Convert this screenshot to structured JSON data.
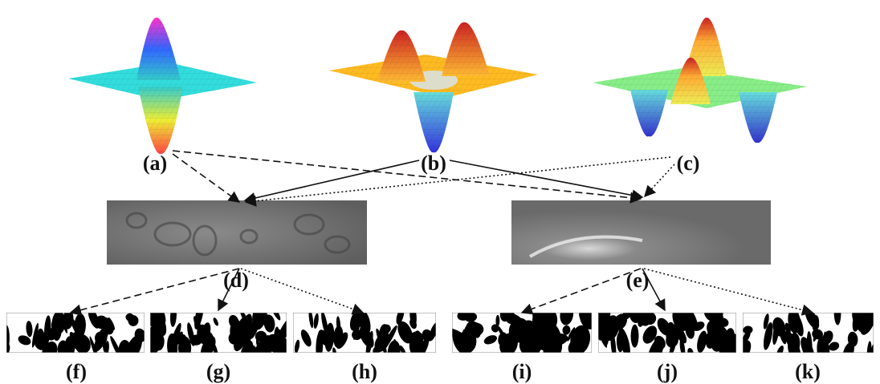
{
  "labels": [
    "(a)",
    "(b)",
    "(c)",
    "(d)",
    "(e)",
    "(f)",
    "(g)",
    "(h)",
    "(i)",
    "(j)",
    "(k)"
  ]
}
